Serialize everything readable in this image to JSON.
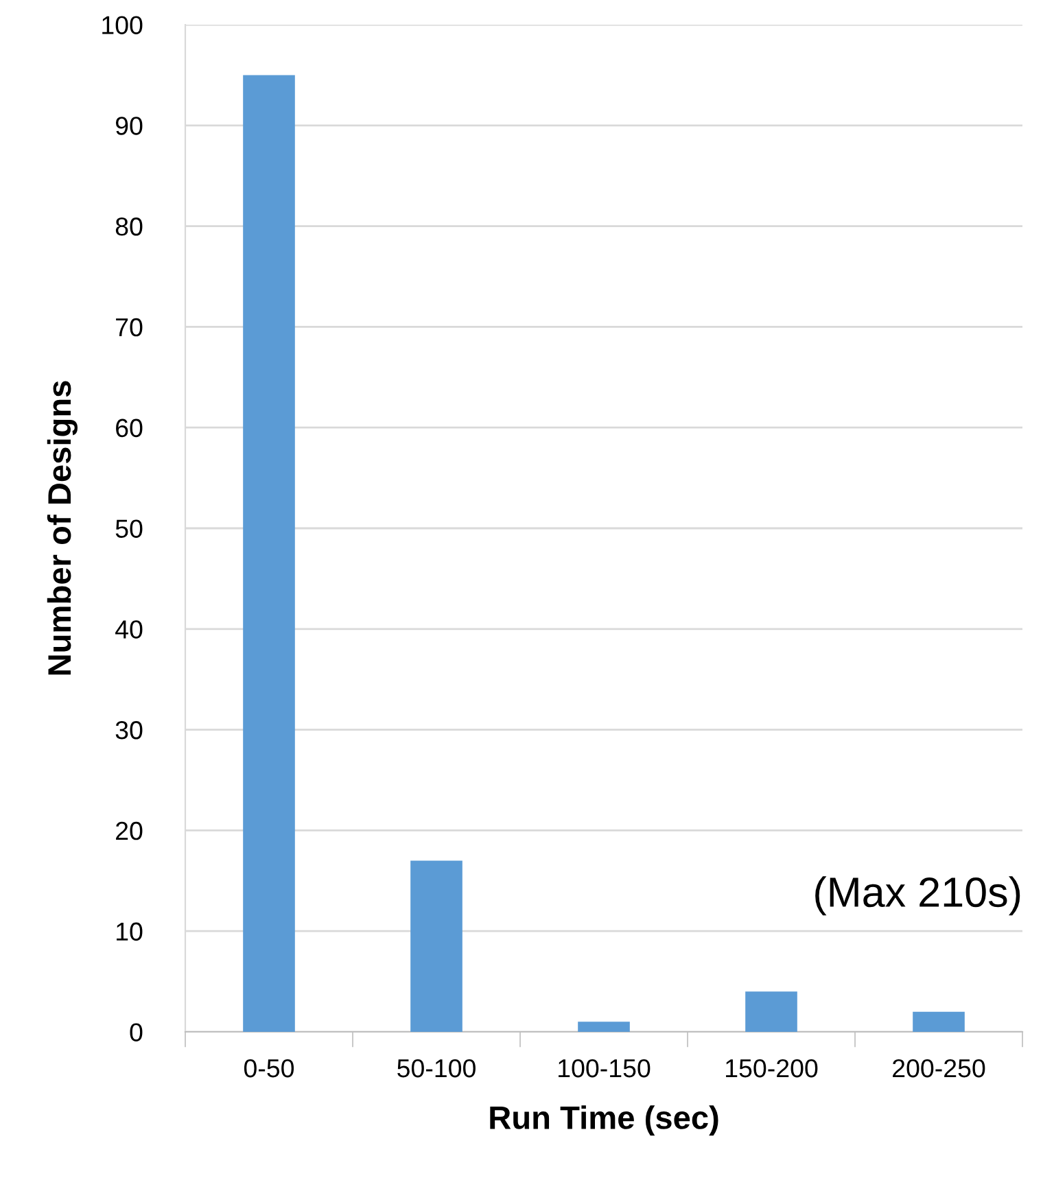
{
  "chart_data": {
    "type": "bar",
    "xlabel": "Run Time (sec)",
    "ylabel": "Number of Designs",
    "categories": [
      "0-50",
      "50-100",
      "100-150",
      "150-200",
      "200-250"
    ],
    "values": [
      95,
      17,
      1,
      4,
      2
    ],
    "color": "#5b9bd5",
    "ylim": [
      0,
      100
    ],
    "yticks": [
      0,
      10,
      20,
      30,
      40,
      50,
      60,
      70,
      80,
      90,
      100
    ],
    "grid": "y",
    "annotations": [
      "(Max 210s)"
    ]
  }
}
